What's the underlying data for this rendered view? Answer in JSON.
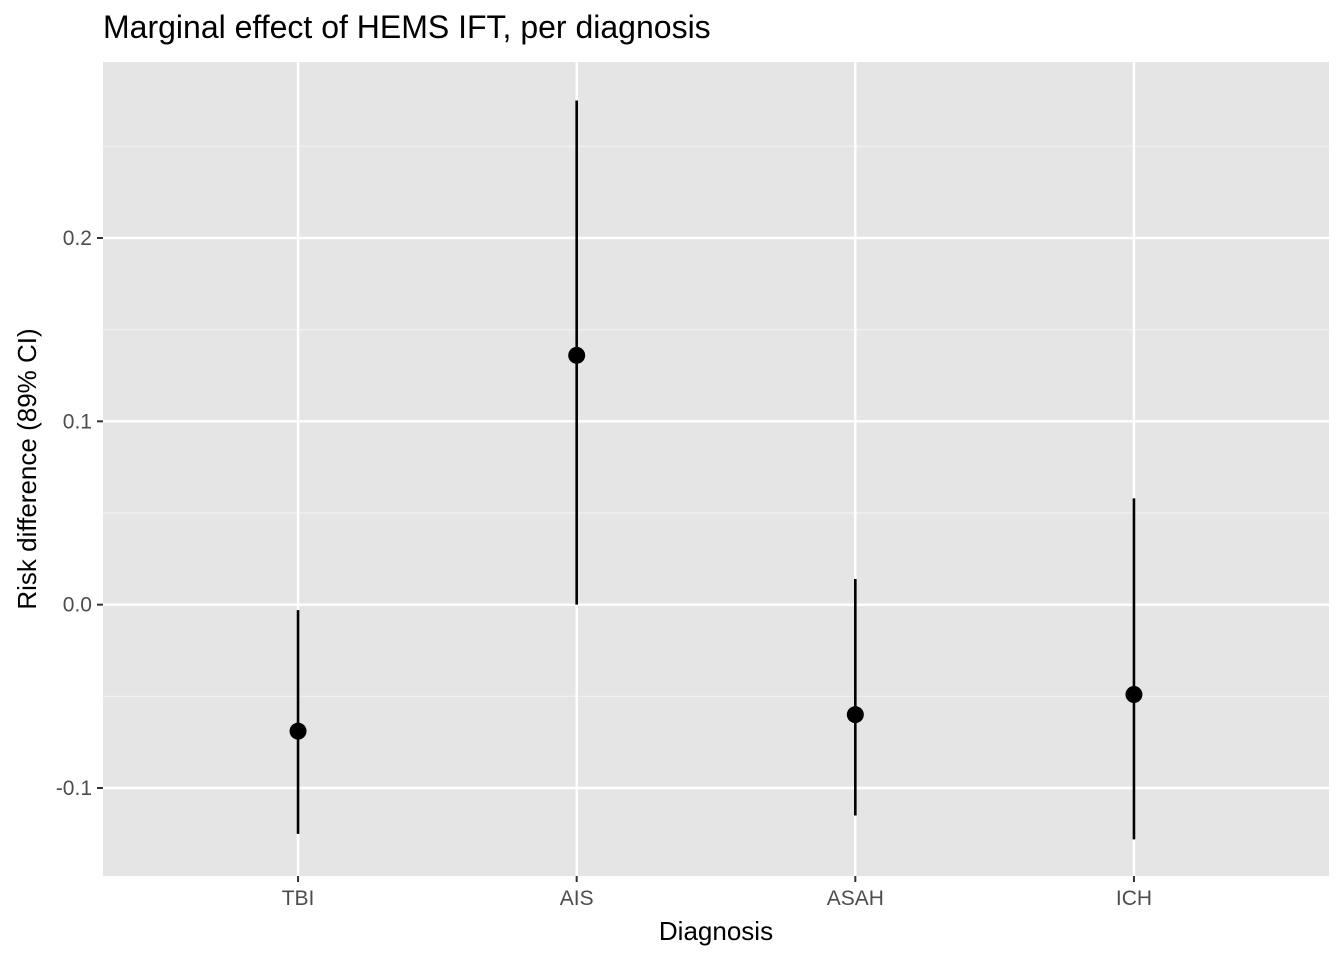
{
  "chart_data": {
    "type": "scatter",
    "title": "Marginal effect of HEMS IFT, per diagnosis",
    "xlabel": "Diagnosis",
    "ylabel": "Risk difference (89% CI)",
    "categories": [
      "TBI",
      "AIS",
      "ASAH",
      "ICH"
    ],
    "estimate": [
      -0.069,
      0.136,
      -0.06,
      -0.049
    ],
    "ci_lower": [
      -0.125,
      0.0,
      -0.115,
      -0.128
    ],
    "ci_upper": [
      -0.003,
      0.275,
      0.014,
      0.058
    ],
    "ylim": [
      -0.148,
      0.296
    ],
    "y_ticks": [
      -0.1,
      0.0,
      0.1,
      0.2
    ],
    "y_tick_labels": [
      "-0.1",
      "0.0",
      "0.1",
      "0.2"
    ],
    "y_minor_ticks": [
      -0.05,
      0.05,
      0.15,
      0.25
    ],
    "grid": true,
    "legend": "none",
    "colors": {
      "panel_background": "#e5e5e5",
      "grid_major": "#ffffff",
      "grid_minor": "#f2f2f2",
      "point": "#000000",
      "interval": "#000000",
      "tick_text": "#4d4d4d"
    }
  }
}
